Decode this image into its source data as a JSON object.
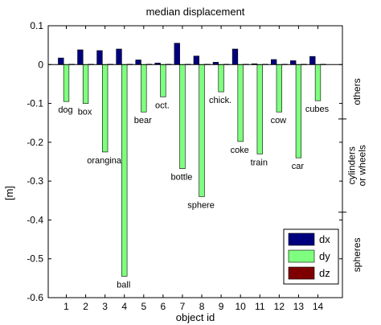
{
  "chart_data": {
    "type": "bar",
    "title": "median displacement",
    "xlabel": "object id",
    "ylabel": "[m]",
    "ylim": [
      -0.6,
      0.1
    ],
    "yticks": [
      "0.1",
      "0",
      "-0.1",
      "-0.2",
      "-0.3",
      "-0.4",
      "-0.5",
      "-0.6"
    ],
    "ytick_values": [
      0.1,
      0,
      -0.1,
      -0.2,
      -0.3,
      -0.4,
      -0.5,
      -0.6
    ],
    "categories": [
      "1",
      "2",
      "3",
      "4",
      "5",
      "6",
      "7",
      "8",
      "9",
      "10",
      "11",
      "12",
      "13",
      "14"
    ],
    "object_names": [
      "dog",
      "box",
      "orangina",
      "ball",
      "bear",
      "oct.",
      "bottle",
      "sphere",
      "chick.",
      "coke",
      "train",
      "cow",
      "car",
      "cubes"
    ],
    "series": [
      {
        "name": "dx",
        "color": "#00007f",
        "values": [
          0.017,
          0.038,
          0.036,
          0.04,
          0.012,
          0.004,
          0.055,
          0.022,
          0.006,
          0.04,
          0.002,
          0.013,
          0.01,
          0.021
        ]
      },
      {
        "name": "dy",
        "color": "#7fff7f",
        "values": [
          -0.095,
          -0.1,
          -0.225,
          -0.545,
          -0.122,
          -0.083,
          -0.268,
          -0.34,
          -0.07,
          -0.198,
          -0.23,
          -0.122,
          -0.24,
          -0.093
        ]
      },
      {
        "name": "dz",
        "color": "#7f0000",
        "values": [
          0.001,
          0.001,
          0.001,
          0.001,
          0.001,
          0.001,
          0.001,
          0.001,
          0.001,
          0.001,
          0.001,
          0.001,
          0.001,
          0.001
        ]
      }
    ],
    "group_labels": [
      {
        "text": "others",
        "ymax": 0.0,
        "ymin": -0.14
      },
      {
        "lines": [
          "cylinders",
          "or wheels"
        ],
        "ymax": -0.14,
        "ymin": -0.38
      },
      {
        "text": "spheres",
        "ymax": -0.38,
        "ymin": -0.6
      }
    ],
    "grid": false,
    "legend_position": "bottom-right"
  }
}
